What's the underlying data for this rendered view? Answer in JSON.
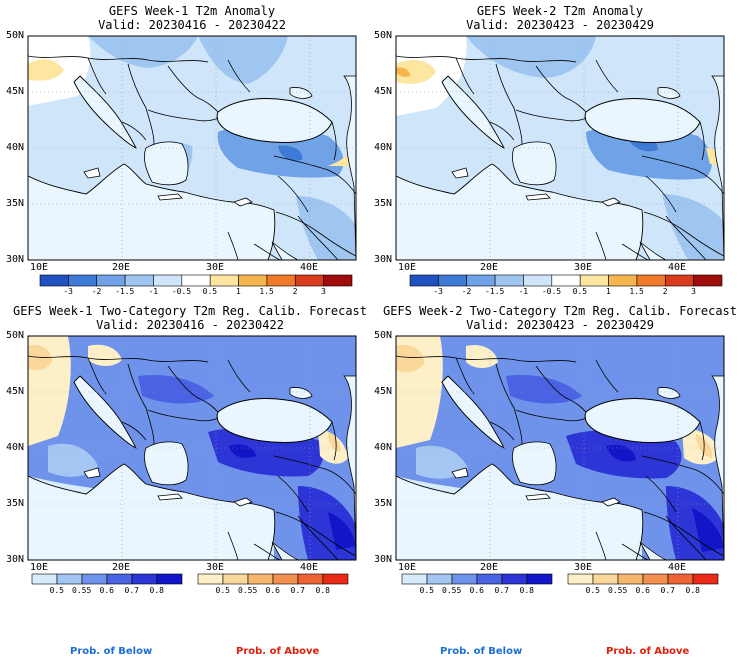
{
  "panels": [
    {
      "title": "GEFS Week-1 T2m Anomaly",
      "valid": "Valid: 20230416 - 20230422"
    },
    {
      "title": "GEFS Week-2 T2m Anomaly",
      "valid": "Valid: 20230423 - 20230429"
    },
    {
      "title": "GEFS Week-1 Two-Category T2m Reg. Calib. Forecast",
      "valid": "Valid: 20230416 - 20230422"
    },
    {
      "title": "GEFS Week-2 Two-Category T2m Reg. Calib. Forecast",
      "valid": "Valid: 20230423 - 20230429"
    }
  ],
  "axes": {
    "lat_labels": [
      "50N",
      "45N",
      "40N",
      "35N",
      "30N"
    ],
    "lon_labels": [
      "10E",
      "20E",
      "30E",
      "40E"
    ]
  },
  "anomaly_colorbar": {
    "labels": [
      "-3",
      "-2",
      "-1.5",
      "-1",
      "-0.5",
      "0.5",
      "1",
      "1.5",
      "2",
      "3"
    ],
    "colors": [
      "#1d52c0",
      "#3e7bd6",
      "#6fa2e6",
      "#9fc6f0",
      "#cfe6fa",
      "#ffffff",
      "#fde7a0",
      "#f7b550",
      "#ef7a2a",
      "#d83c1c",
      "#9e0c0c"
    ]
  },
  "prob_below_colorbar": {
    "labels": [
      "0.5",
      "0.55",
      "0.6",
      "0.7",
      "0.8"
    ],
    "colors": [
      "#d7ecfa",
      "#a3c6f2",
      "#6f93ea",
      "#4a63e2",
      "#2d35d6",
      "#1216c8"
    ],
    "caption": "Prob. of Below",
    "caption_color": "#1a6fd6"
  },
  "prob_above_colorbar": {
    "labels": [
      "0.5",
      "0.55",
      "0.6",
      "0.7",
      "0.8"
    ],
    "colors": [
      "#fdf0c8",
      "#fad79a",
      "#f6b66e",
      "#f29050",
      "#ee6434",
      "#ea2a16"
    ],
    "caption": "Prob. of Above",
    "caption_color": "#e0200a"
  }
}
